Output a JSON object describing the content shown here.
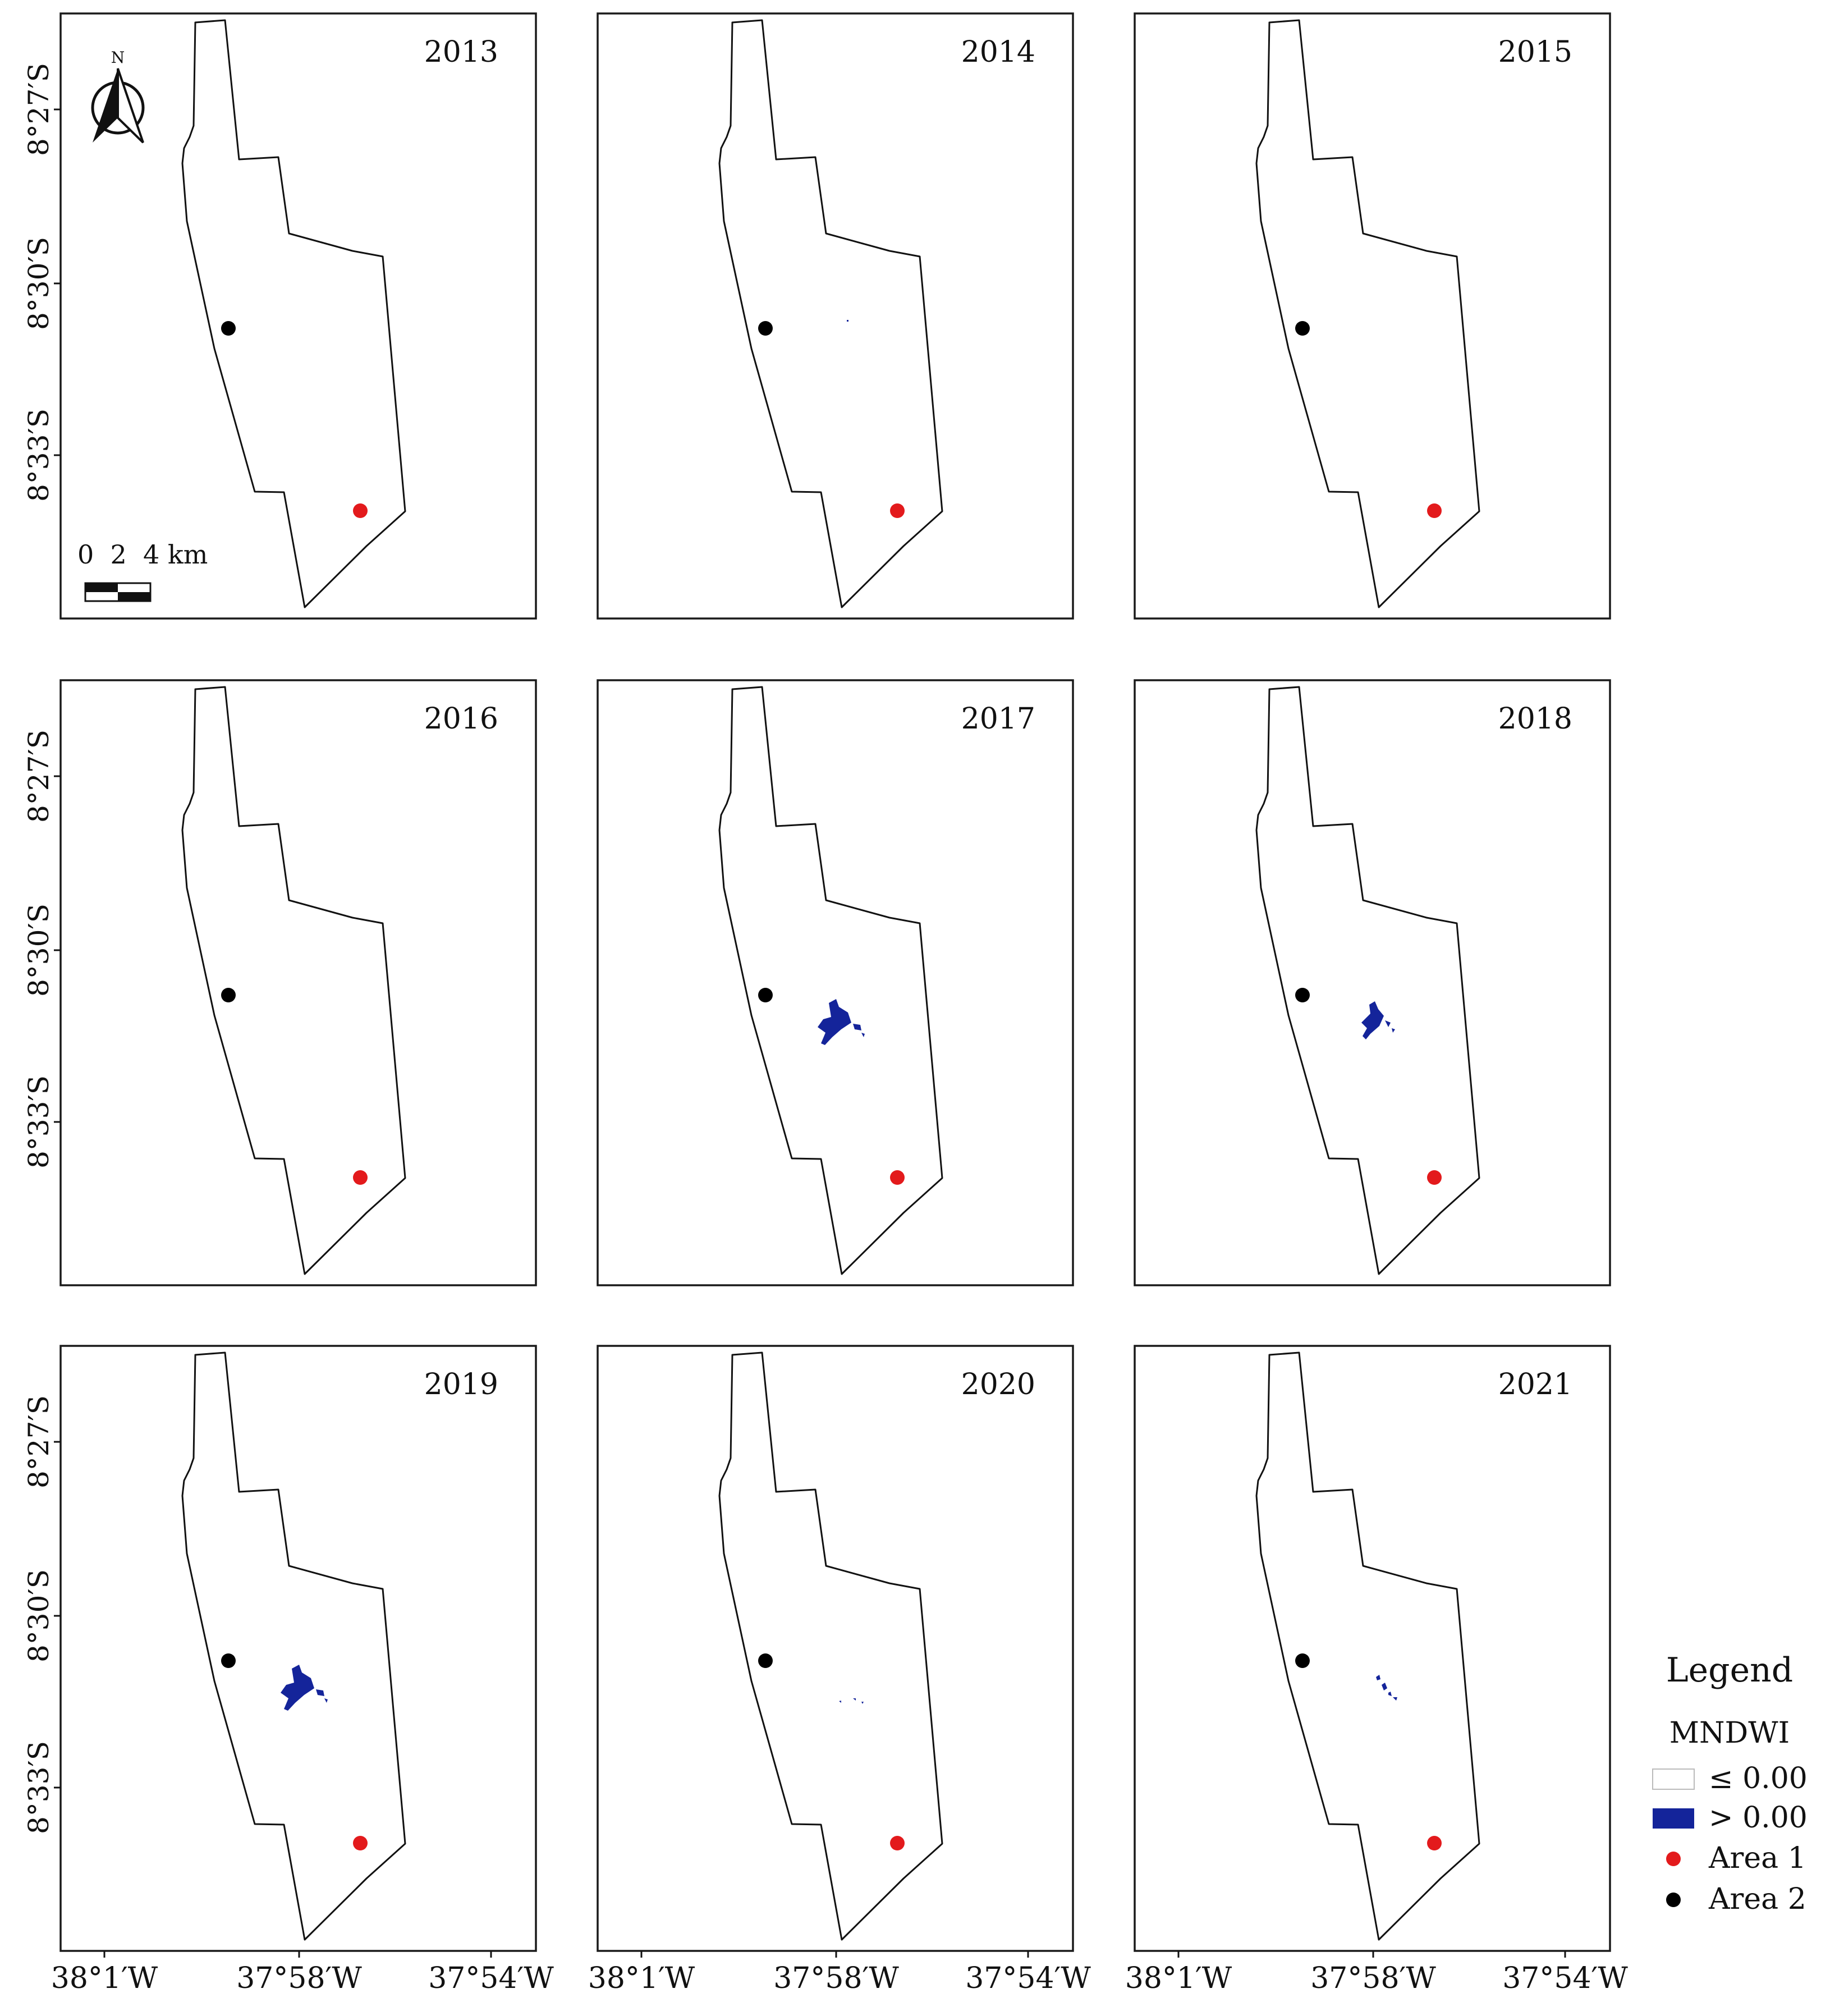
{
  "figure": {
    "panels": [
      {
        "year": "2013",
        "water": "none"
      },
      {
        "year": "2014",
        "water": "speck"
      },
      {
        "year": "2015",
        "water": "none"
      },
      {
        "year": "2016",
        "water": "none"
      },
      {
        "year": "2017",
        "water": "large"
      },
      {
        "year": "2018",
        "water": "medium"
      },
      {
        "year": "2019",
        "water": "large"
      },
      {
        "year": "2020",
        "water": "tiny"
      },
      {
        "year": "2021",
        "water": "small"
      }
    ],
    "y_axis_labels": [
      "8°27′S",
      "8°30′S",
      "8°33′S"
    ],
    "x_axis_labels": [
      "38°1′W",
      "37°58′W",
      "37°54′W"
    ],
    "north_arrow": {
      "icon": "north-arrow-icon",
      "label": "N"
    },
    "scale_bar": {
      "label": "0  2  4 km"
    },
    "legend": {
      "title": "Legend",
      "subtitle": "MNDWI",
      "items": [
        {
          "label": "≤ 0.00",
          "color": "#ffffff"
        },
        {
          "label": "> 0.00",
          "color": "#14249a"
        },
        {
          "label": "Area 1",
          "color": "#e31a1c"
        },
        {
          "label": "Area 2",
          "color": "#000000"
        }
      ]
    },
    "colors": {
      "water": "#14249a",
      "area1": "#e31a1c",
      "area2": "#000000",
      "frame": "#1a1a1a"
    }
  }
}
